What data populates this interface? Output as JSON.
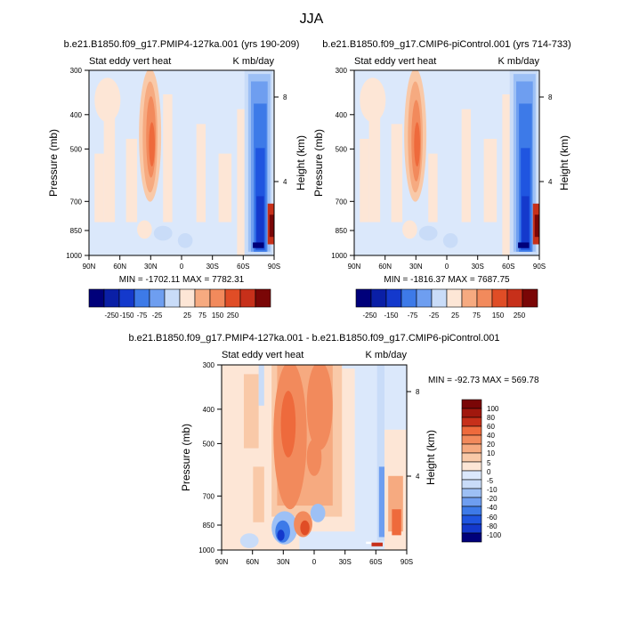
{
  "figure": {
    "title": "JJA"
  },
  "palette": {
    "neg": [
      "#00007a",
      "#0a1fa6",
      "#1439cc",
      "#1f55e0",
      "#3d7ae8",
      "#6e9ef0",
      "#9dc0f5",
      "#c9dcf8",
      "#dbe8fb"
    ],
    "pos": [
      "#fde6d6",
      "#f9c9a8",
      "#f6aa80",
      "#f28a5c",
      "#ee6a3c",
      "#e04d26",
      "#c7301a",
      "#a1180e",
      "#7a0606"
    ]
  },
  "chart_data": [
    {
      "type": "heatmap",
      "name": "b.e21.B1850.f09_g17.PMIP4-127ka.001 (yrs 190-209)",
      "title": "b.e21.B1850.f09_g17.PMIP4-127ka.001 (yrs 190-209)",
      "left_label": "Stat eddy vert heat",
      "right_label": "K mb/day",
      "xlabel": "",
      "ylabel": "Pressure (mb)",
      "y2label": "Height (km)",
      "x_ticks": [
        "90N",
        "60N",
        "30N",
        "0",
        "30S",
        "60S",
        "90S"
      ],
      "y_ticks": [
        "300",
        "400",
        "500",
        "700",
        "850",
        "1000"
      ],
      "y2_ticks": [
        "8",
        "4"
      ],
      "xlim": [
        90,
        -90
      ],
      "ylim": [
        1000,
        300
      ],
      "y_scale": "log",
      "stats": "MIN = -1702.11  MAX = 7782.31",
      "colorbar": {
        "labels": [
          "-250",
          "-150",
          "-75",
          "-25",
          "25",
          "75",
          "150",
          "250"
        ],
        "boxes": 12
      }
    },
    {
      "type": "heatmap",
      "name": "b.e21.B1850.f09_g17.CMIP6-piControl.001 (yrs 714-733)",
      "title": "b.e21.B1850.f09_g17.CMIP6-piControl.001 (yrs 714-733)",
      "left_label": "Stat eddy vert heat",
      "right_label": "K mb/day",
      "xlabel": "",
      "ylabel": "Pressure (mb)",
      "y2label": "Height (km)",
      "x_ticks": [
        "90N",
        "60N",
        "30N",
        "0",
        "30S",
        "60S",
        "90S"
      ],
      "y_ticks": [
        "300",
        "400",
        "500",
        "700",
        "850",
        "1000"
      ],
      "y2_ticks": [
        "8",
        "4"
      ],
      "xlim": [
        90,
        -90
      ],
      "ylim": [
        1000,
        300
      ],
      "y_scale": "log",
      "stats": "MIN = -1816.37  MAX = 7687.75",
      "colorbar": {
        "labels": [
          "-250",
          "-150",
          "-75",
          "-25",
          "25",
          "75",
          "150",
          "250"
        ],
        "boxes": 12
      }
    },
    {
      "type": "heatmap",
      "name": "b.e21.B1850.f09_g17.PMIP4-127ka.001 - b.e21.B1850.f09_g17.CMIP6-piControl.001",
      "title": "b.e21.B1850.f09_g17.PMIP4-127ka.001 - b.e21.B1850.f09_g17.CMIP6-piControl.001",
      "left_label": "Stat eddy vert heat",
      "right_label": "K mb/day",
      "xlabel": "",
      "ylabel": "Pressure (mb)",
      "y2label": "Height (km)",
      "x_ticks": [
        "90N",
        "60N",
        "30N",
        "0",
        "30S",
        "60S",
        "90S"
      ],
      "y_ticks": [
        "300",
        "400",
        "500",
        "700",
        "850",
        "1000"
      ],
      "y2_ticks": [
        "8",
        "4"
      ],
      "xlim": [
        90,
        -90
      ],
      "ylim": [
        1000,
        300
      ],
      "y_scale": "log",
      "stats": "MIN = -92.73  MAX = 569.78",
      "colorbar": {
        "labels": [
          "100",
          "80",
          "60",
          "40",
          "20",
          "10",
          "5",
          "0",
          "-5",
          "-10",
          "-20",
          "-40",
          "-60",
          "-80",
          "-100"
        ],
        "boxes": 16
      }
    }
  ]
}
